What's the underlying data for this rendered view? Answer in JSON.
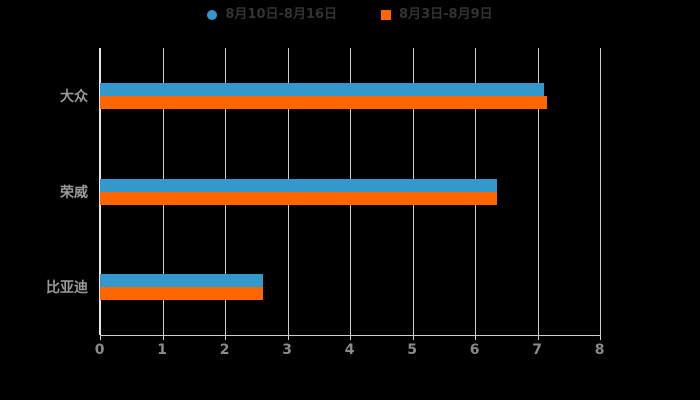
{
  "background_color": "#000000",
  "chart_data": {
    "type": "bar",
    "orientation": "horizontal",
    "title": "",
    "xlabel": "",
    "ylabel": "",
    "categories": [
      "大众",
      "荣威",
      "比亚迪"
    ],
    "series": [
      {
        "name": "8月10日-8月16日",
        "color": "#3399cc",
        "legend_marker": "circle",
        "values": [
          7.1,
          6.35,
          2.6
        ]
      },
      {
        "name": "8月3日-8月9日",
        "color": "#ff6600",
        "legend_marker": "square",
        "values": [
          7.15,
          6.35,
          2.6
        ]
      }
    ],
    "xlim": [
      0,
      8
    ],
    "x_ticks": [
      "0",
      "1",
      "2",
      "3",
      "4",
      "5",
      "6",
      "7",
      "8"
    ],
    "grid": true,
    "legend_position": "top-center",
    "axis_color": "#cfcfcf",
    "tick_label_color": "#8a8a8a",
    "category_label_color": "#999999"
  }
}
